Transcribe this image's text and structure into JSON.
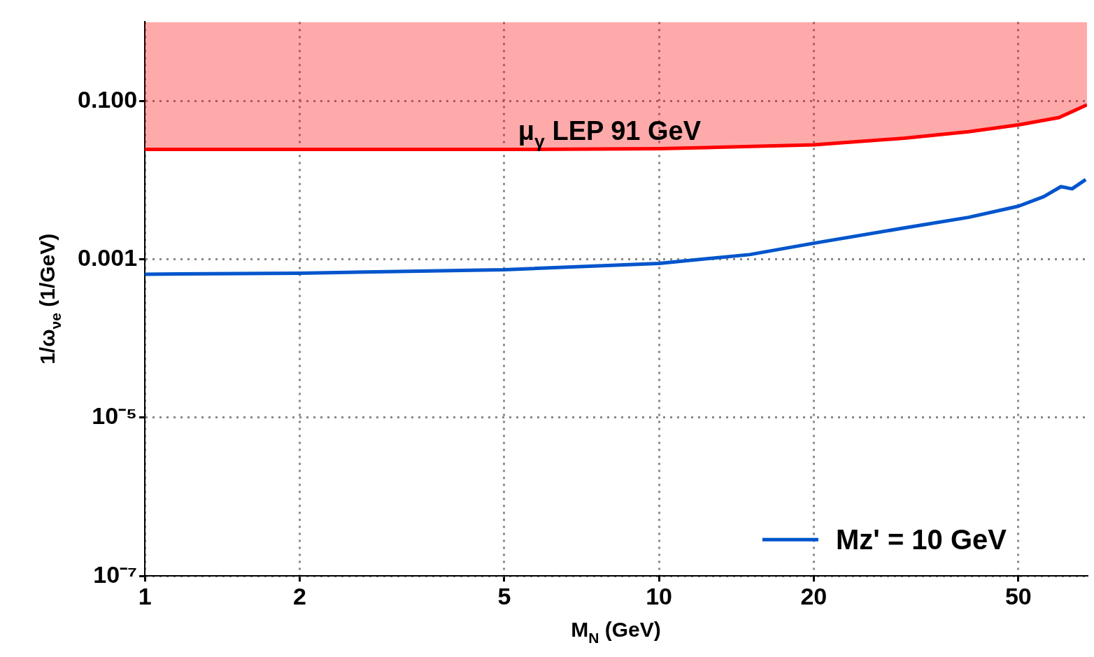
{
  "chart_data": {
    "type": "line",
    "xlabel": "M$_{N}$ (GeV)",
    "ylabel": "1/ω$_{νe}$ (1/GeV)",
    "log": "xy",
    "grid": true,
    "line_style": "solid",
    "marker": "none",
    "legend": "bottom right",
    "xlim": [
      1,
      68
    ],
    "xticks": [
      1,
      2,
      5,
      10,
      20,
      50
    ],
    "ylim": [
      1e-07,
      1
    ],
    "yticks": [
      {
        "value": 1e-07,
        "label": "10⁻⁷"
      },
      {
        "value": 1e-05,
        "label": "10⁻⁵"
      },
      {
        "value": 0.001,
        "label": "0.001"
      },
      {
        "value": 0.1,
        "label": "0.100"
      }
    ],
    "series": [
      {
        "name": "μ$_{γ}$ LEP 91 GeV",
        "color": "#ff0000",
        "x": [
          1,
          2,
          5,
          10,
          20,
          30,
          40,
          50,
          60,
          68
        ],
        "values": [
          0.0245,
          0.0245,
          0.0245,
          0.025,
          0.028,
          0.034,
          0.041,
          0.05,
          0.062,
          0.09
        ],
        "lower": [
          0.0245,
          0.0245,
          0.0245,
          0.025,
          0.028,
          0.034,
          0.041,
          0.05,
          0.062,
          0.09
        ],
        "upper": [
          1,
          1,
          1,
          1,
          1,
          1,
          1,
          1,
          1,
          1
        ]
      },
      {
        "name": "Mz' = 10 GeV",
        "color": "#0055cc",
        "x": [
          1,
          2,
          5,
          10,
          15,
          20,
          30,
          40,
          50,
          56,
          60.5,
          63.6,
          67.6
        ],
        "values": [
          0.00065,
          0.00067,
          0.00074,
          0.00089,
          0.00115,
          0.0016,
          0.0025,
          0.0034,
          0.0047,
          0.0062,
          0.0083,
          0.0078,
          0.0102
        ]
      }
    ]
  }
}
